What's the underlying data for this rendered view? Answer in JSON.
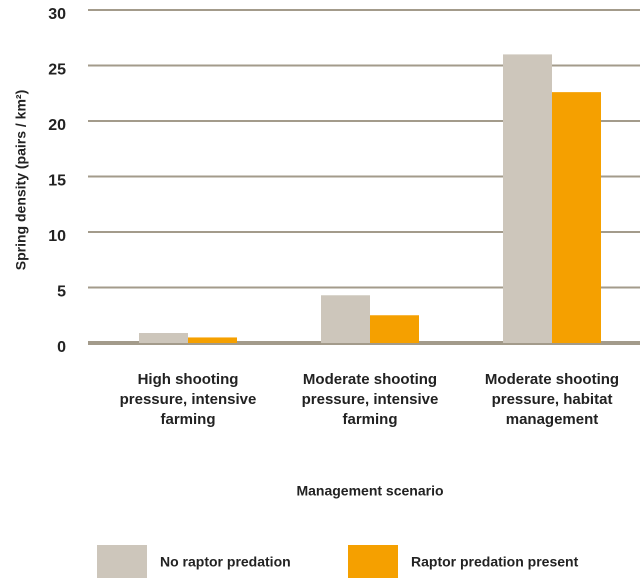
{
  "chart_data": {
    "type": "bar",
    "categories": [
      "High shooting pressure, intensive farming",
      "Moderate shooting pressure, intensive farming",
      "Moderate shooting pressure, habitat management"
    ],
    "series": [
      {
        "name": "No raptor predation",
        "color": "#cdc6bb",
        "values": [
          0.9,
          4.3,
          26
        ]
      },
      {
        "name": "Raptor predation present",
        "color": "#f5a000",
        "values": [
          0.5,
          2.5,
          22.6
        ]
      }
    ],
    "ylim": [
      0,
      30
    ],
    "yticks": [
      0,
      5,
      10,
      15,
      20,
      25,
      30
    ],
    "grid": true,
    "y_label": "Spring density (pairs / km²)",
    "x_label": "Management scenario",
    "legend": "bottom"
  }
}
